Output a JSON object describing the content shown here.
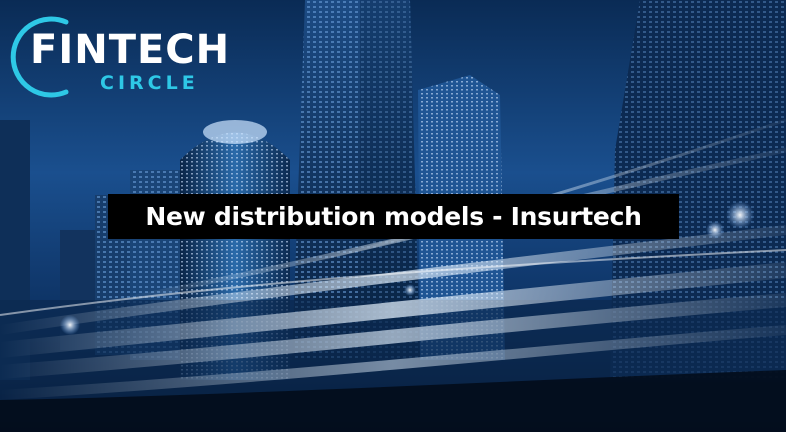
{
  "logo": {
    "word_part1": "FIN",
    "word_part2": "TECH",
    "subword": "CIRCLE",
    "accent_color": "#2ec8e6"
  },
  "banner": {
    "title": "New distribution models - Insurtech"
  },
  "background": {
    "scene": "city-skyscrapers-light-trails",
    "tint_color": "#0d3b72"
  }
}
